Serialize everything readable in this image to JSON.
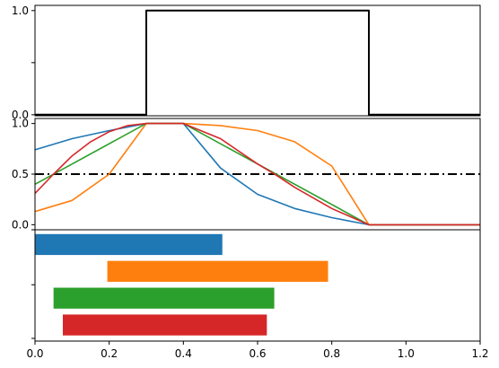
{
  "chart_data": [
    {
      "type": "line",
      "panel": "top",
      "xlim": [
        0,
        1.2
      ],
      "ylim": [
        -0.01,
        1.05
      ],
      "yticks": [
        0.0,
        0.5,
        1.0
      ],
      "ytick_labels": [
        "0.0",
        "",
        "1.0"
      ],
      "series": [
        {
          "color": "#000000",
          "x": [
            0.0,
            0.3,
            0.3,
            0.9,
            0.9,
            1.2
          ],
          "y": [
            0,
            0,
            1,
            1,
            0,
            0
          ]
        }
      ]
    },
    {
      "type": "line",
      "panel": "middle",
      "xlim": [
        0,
        1.2
      ],
      "ylim": [
        -0.05,
        1.05
      ],
      "yticks": [
        0.0,
        0.5,
        1.0
      ],
      "ytick_labels": [
        "0.0",
        "0.5",
        "1.0"
      ],
      "hline": {
        "y": 0.5,
        "style": "dashdot",
        "color": "#000000"
      },
      "series": [
        {
          "color": "#1f77b4",
          "x": [
            0.0,
            0.1,
            0.2,
            0.3,
            0.4,
            0.5,
            0.6,
            0.7,
            0.8,
            0.9,
            1.0,
            1.1,
            1.2
          ],
          "y": [
            0.74,
            0.85,
            0.93,
            1.0,
            1.0,
            0.56,
            0.3,
            0.16,
            0.07,
            0.0,
            0.0,
            0.0,
            0.0
          ]
        },
        {
          "color": "#ff7f0e",
          "x": [
            0.0,
            0.1,
            0.2,
            0.3,
            0.4,
            0.5,
            0.6,
            0.7,
            0.8,
            0.9,
            1.0,
            1.1,
            1.2
          ],
          "y": [
            0.13,
            0.24,
            0.5,
            1.0,
            1.0,
            0.98,
            0.93,
            0.82,
            0.58,
            0.0,
            0.0,
            0.0,
            0.0
          ]
        },
        {
          "color": "#2ca02c",
          "x": [
            0.0,
            0.3,
            0.4,
            0.9,
            1.2
          ],
          "y": [
            0.4,
            1.0,
            1.0,
            0.0,
            0.0
          ]
        },
        {
          "color": "#d62728",
          "x": [
            0.0,
            0.05,
            0.1,
            0.15,
            0.2,
            0.25,
            0.3,
            0.4,
            0.5,
            0.6,
            0.65,
            0.7,
            0.8,
            0.9,
            1.0,
            1.1,
            1.2
          ],
          "y": [
            0.31,
            0.5,
            0.68,
            0.82,
            0.92,
            0.98,
            1.0,
            1.0,
            0.85,
            0.6,
            0.49,
            0.37,
            0.16,
            0.0,
            0.0,
            0.0,
            0.0
          ]
        }
      ]
    },
    {
      "type": "bar",
      "orientation": "horizontal",
      "panel": "bottom",
      "xlim": [
        0,
        1.2
      ],
      "xticks": [
        0.0,
        0.2,
        0.4,
        0.6,
        0.8,
        1.0,
        1.2
      ],
      "xtick_labels": [
        "0.0",
        "0.2",
        "0.4",
        "0.6",
        "0.8",
        "1.0",
        "1.2"
      ],
      "ylim": [
        -0.6,
        3.55
      ],
      "bars": [
        {
          "color": "#1f77b4",
          "y": 3,
          "start": 0.0,
          "end": 0.505
        },
        {
          "color": "#ff7f0e",
          "y": 2,
          "start": 0.195,
          "end": 0.79
        },
        {
          "color": "#2ca02c",
          "y": 1,
          "start": 0.05,
          "end": 0.645
        },
        {
          "color": "#d62728",
          "y": 0,
          "start": 0.075,
          "end": 0.625
        }
      ]
    }
  ]
}
